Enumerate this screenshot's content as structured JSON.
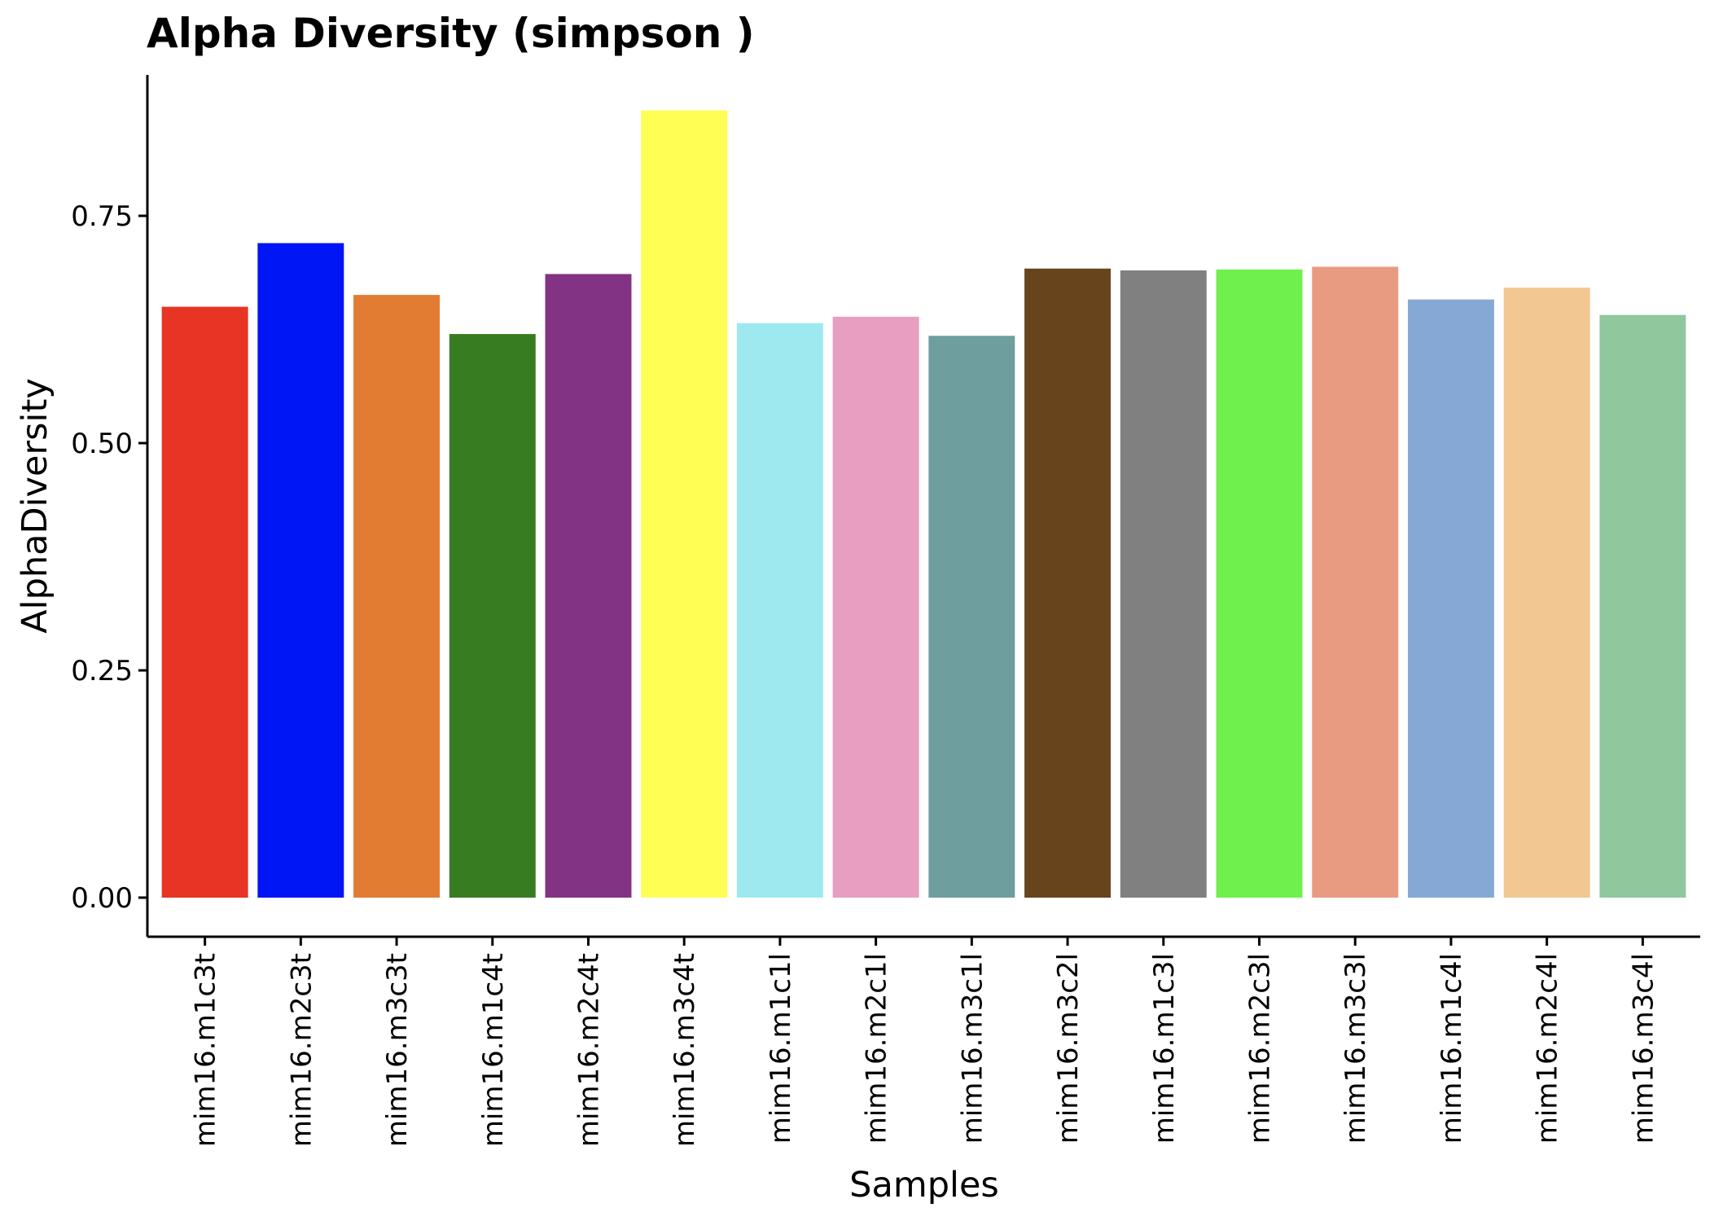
{
  "chart_data": {
    "type": "bar",
    "title": "Alpha Diversity (simpson )",
    "xlabel": "Samples",
    "ylabel": "AlphaDiversity",
    "ylim": [
      -0.043,
      0.905
    ],
    "yticks": [
      0.0,
      0.25,
      0.5,
      0.75
    ],
    "ytick_labels": [
      "0.00",
      "0.25",
      "0.50",
      "0.75"
    ],
    "grid": false,
    "legend": "none",
    "categories": [
      "mim16.m1c3t",
      "mim16.m2c3t",
      "mim16.m3c3t",
      "mim16.m1c4t",
      "mim16.m2c4t",
      "mim16.m3c4t",
      "mim16.m1c1l",
      "mim16.m2c1l",
      "mim16.m3c1l",
      "mim16.m3c2l",
      "mim16.m1c3l",
      "mim16.m2c3l",
      "mim16.m3c3l",
      "mim16.m1c4l",
      "mim16.m2c4l",
      "mim16.m3c4l"
    ],
    "values": [
      0.65,
      0.72,
      0.663,
      0.62,
      0.686,
      0.866,
      0.632,
      0.639,
      0.618,
      0.692,
      0.69,
      0.691,
      0.694,
      0.658,
      0.671,
      0.641
    ],
    "colors": [
      "#E73424",
      "#0016F5",
      "#E27C32",
      "#387C22",
      "#833384",
      "#FFFE55",
      "#9EE9F0",
      "#E79EC1",
      "#6E9E9E",
      "#67441C",
      "#808080",
      "#6FF04C",
      "#E89B81",
      "#86A8D5",
      "#F2C791",
      "#90C79D"
    ]
  }
}
